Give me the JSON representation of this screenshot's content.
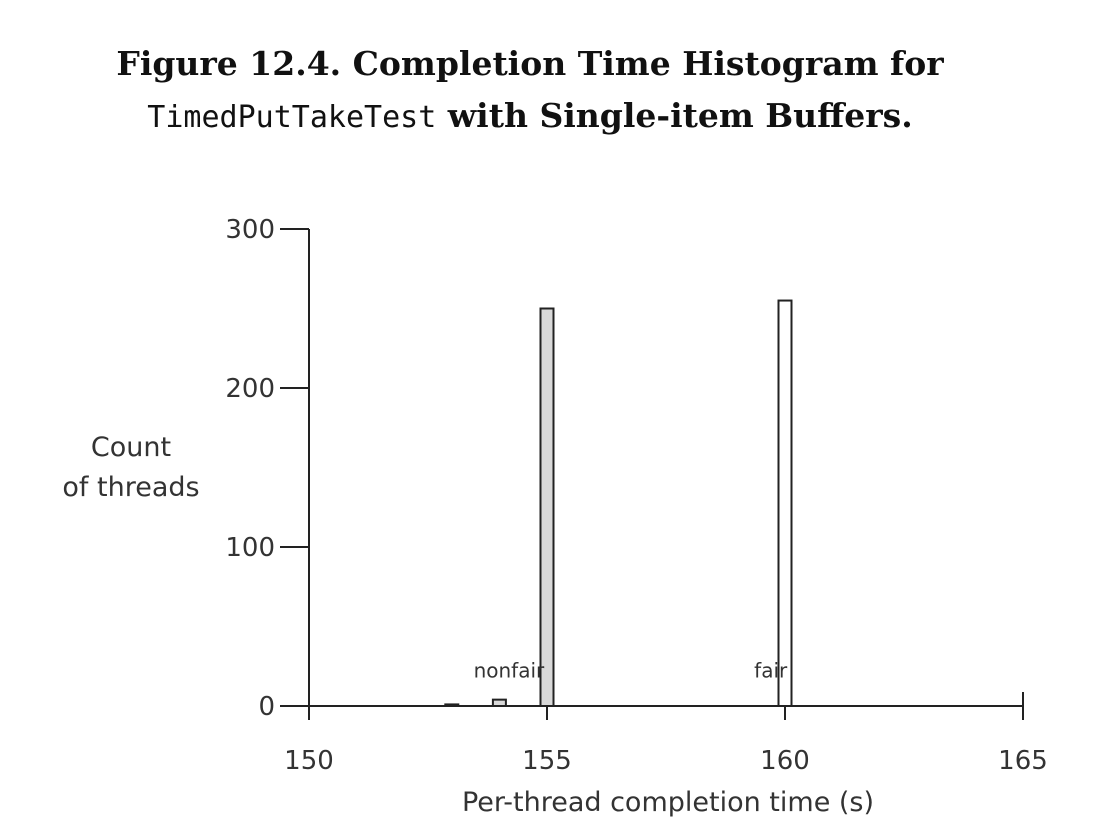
{
  "figure": {
    "title_line1": "Figure 12.4. Completion Time Histogram for",
    "title_code": "TimedPutTakeTest",
    "title_line2_rest": " with Single-item Buffers."
  },
  "chart_data": {
    "type": "bar",
    "title": "",
    "xlabel": "Per-thread completion time (s)",
    "ylabel_lines": [
      "Count",
      "of threads"
    ],
    "xlim": [
      150,
      165
    ],
    "ylim": [
      0,
      300
    ],
    "xticks": [
      150,
      155,
      160,
      165
    ],
    "yticks": [
      0,
      100,
      200,
      300
    ],
    "grid": false,
    "series": [
      {
        "name": "nonfair",
        "color": "#d9d9d9",
        "points": [
          {
            "x": 153,
            "y": 1
          },
          {
            "x": 154,
            "y": 4
          },
          {
            "x": 155,
            "y": 250
          }
        ]
      },
      {
        "name": "fair",
        "color": "#ffffff",
        "points": [
          {
            "x": 160,
            "y": 255
          }
        ]
      }
    ],
    "annotations": [
      {
        "text": "nonfair",
        "x": 154.2,
        "y": 18
      },
      {
        "text": "fair",
        "x": 159.7,
        "y": 18
      }
    ]
  }
}
